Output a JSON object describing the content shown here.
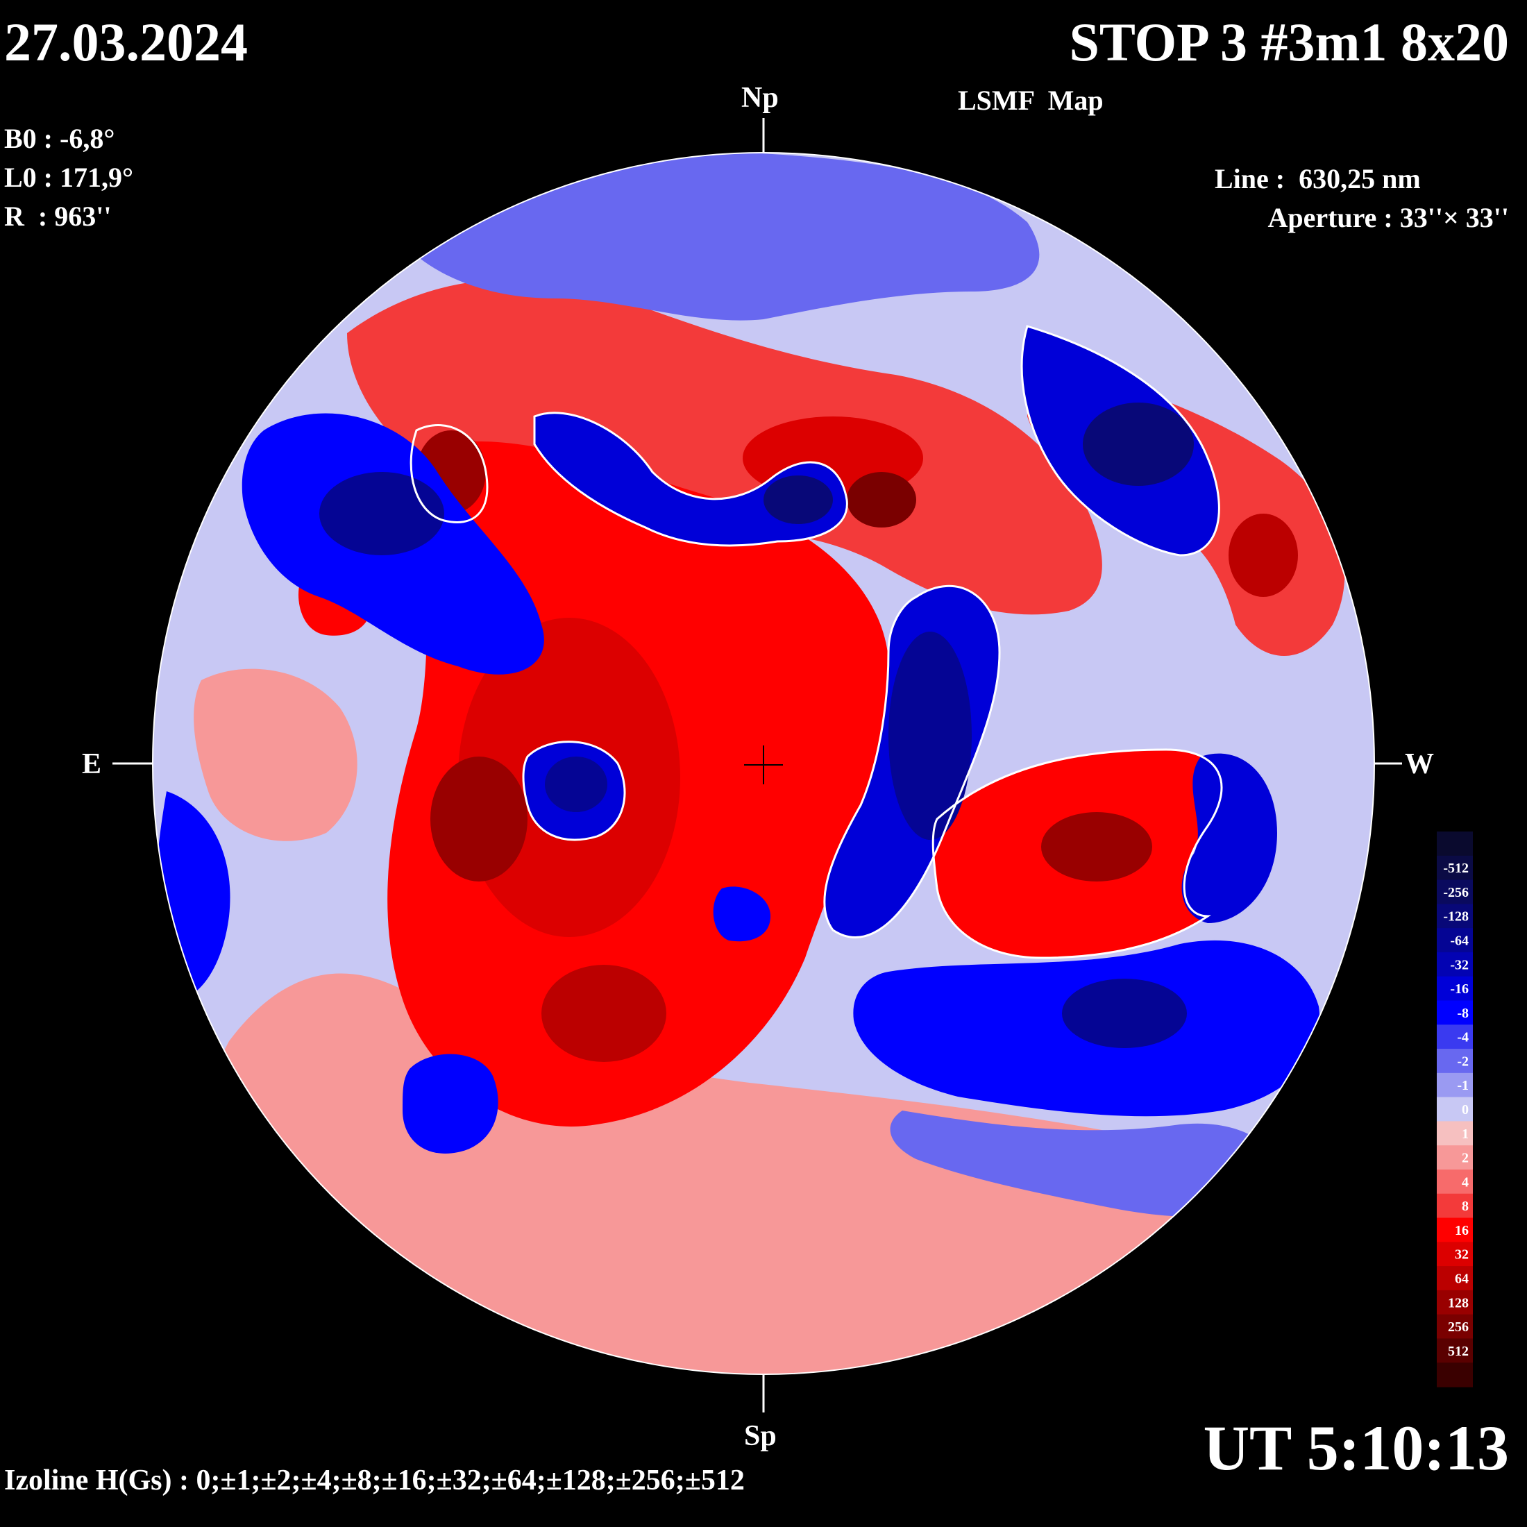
{
  "header": {
    "date": "27.03.2024",
    "title": "STOP 3 #3m1 8x20",
    "subtitle": "LSMF  Map"
  },
  "params_left": {
    "b0": "B0 : -6,8°",
    "l0": "L0 : 171,9°",
    "r": "R  : 963''"
  },
  "params_right": {
    "line": "Line :  630,25 nm",
    "aperture": "Aperture : 33''× 33''"
  },
  "compass": {
    "north": "Np",
    "south": "Sp",
    "east": "E",
    "west": "W"
  },
  "footer": {
    "izoline": "Izoline H(Gs) : 0;±1;±2;±4;±8;±16;±32;±64;±128;±256;±512",
    "time": "UT 5:10:13"
  },
  "colors": {
    "background": "#000000",
    "negative_polarity": "#0000ff",
    "positive_polarity": "#ff0000",
    "zero_contour": "#ffffff"
  },
  "color_scale": {
    "items": [
      {
        "label": "",
        "color": "#0a0a2e"
      },
      {
        "label": "-512",
        "color": "#0b0b45"
      },
      {
        "label": "-256",
        "color": "#0a0a5e"
      },
      {
        "label": "-128",
        "color": "#080878"
      },
      {
        "label": "-64",
        "color": "#050594"
      },
      {
        "label": "-32",
        "color": "#0303b3"
      },
      {
        "label": "-16",
        "color": "#0000d8"
      },
      {
        "label": "-8",
        "color": "#0000ff"
      },
      {
        "label": "-4",
        "color": "#3a3af0"
      },
      {
        "label": "-2",
        "color": "#6868f0"
      },
      {
        "label": "-1",
        "color": "#9a9af2"
      },
      {
        "label": "0",
        "color": "#c8c8f4"
      },
      {
        "label": "1",
        "color": "#f6c0c0"
      },
      {
        "label": "2",
        "color": "#f79898"
      },
      {
        "label": "4",
        "color": "#f76b6b"
      },
      {
        "label": "8",
        "color": "#f33a3a"
      },
      {
        "label": "16",
        "color": "#ff0000"
      },
      {
        "label": "32",
        "color": "#dc0000"
      },
      {
        "label": "64",
        "color": "#bb0000"
      },
      {
        "label": "128",
        "color": "#990000"
      },
      {
        "label": "256",
        "color": "#7a0000"
      },
      {
        "label": "512",
        "color": "#5a0000"
      },
      {
        "label": "",
        "color": "#3a0000"
      }
    ]
  },
  "map_regions": [
    {
      "name": "negative-cap-north-center",
      "sign": "negative"
    },
    {
      "name": "negative-cap-northeast",
      "sign": "negative"
    },
    {
      "name": "negative-cap-northwest",
      "sign": "negative"
    },
    {
      "name": "negative-region-east-limb",
      "sign": "negative"
    },
    {
      "name": "negative-region-center-west",
      "sign": "negative"
    },
    {
      "name": "negative-region-west",
      "sign": "negative"
    },
    {
      "name": "negative-region-southwest",
      "sign": "negative"
    },
    {
      "name": "negative-spot-center-left",
      "sign": "negative"
    },
    {
      "name": "negative-spot-south",
      "sign": "negative"
    },
    {
      "name": "positive-region-south",
      "sign": "positive"
    },
    {
      "name": "positive-band-north",
      "sign": "positive"
    },
    {
      "name": "positive-region-central",
      "sign": "positive"
    },
    {
      "name": "positive-region-west",
      "sign": "positive"
    },
    {
      "name": "positive-region-northwest-arc",
      "sign": "positive"
    }
  ]
}
